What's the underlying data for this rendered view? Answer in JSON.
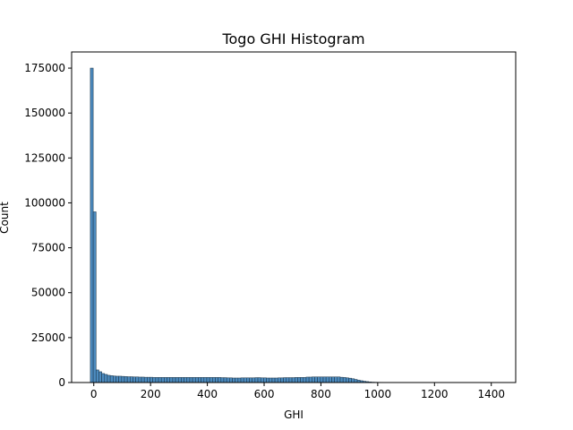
{
  "chart_data": {
    "type": "bar",
    "title": "Togo GHI Histogram",
    "xlabel": "GHI",
    "ylabel": "Count",
    "xlim": [
      -78,
      1486
    ],
    "ylim": [
      0,
      184000
    ],
    "x_ticks": [
      0,
      200,
      400,
      600,
      800,
      1000,
      1200,
      1400
    ],
    "y_ticks": [
      0,
      25000,
      50000,
      75000,
      100000,
      125000,
      150000,
      175000
    ],
    "x_tick_labels": [
      "0",
      "200",
      "400",
      "600",
      "800",
      "1000",
      "1200",
      "1400"
    ],
    "y_tick_labels": [
      "0",
      "25000",
      "50000",
      "75000",
      "100000",
      "125000",
      "150000",
      "175000"
    ],
    "bin_start": -12,
    "bin_width": 10,
    "counts": [
      175000,
      95000,
      7000,
      6000,
      5000,
      4500,
      4000,
      3800,
      3600,
      3500,
      3500,
      3400,
      3300,
      3200,
      3200,
      3100,
      3100,
      3000,
      3000,
      2900,
      2900,
      2900,
      2800,
      2800,
      2800,
      2800,
      2800,
      2800,
      2800,
      2800,
      2800,
      2800,
      2800,
      2800,
      2800,
      2800,
      2800,
      2800,
      2800,
      2800,
      2800,
      2800,
      2800,
      2800,
      2800,
      2800,
      2700,
      2700,
      2600,
      2600,
      2500,
      2500,
      2500,
      2600,
      2600,
      2600,
      2600,
      2600,
      2700,
      2700,
      2600,
      2600,
      2500,
      2500,
      2500,
      2500,
      2600,
      2600,
      2700,
      2700,
      2700,
      2700,
      2800,
      2800,
      2800,
      2800,
      3000,
      3000,
      3100,
      3100,
      3100,
      3100,
      3100,
      3100,
      3100,
      3100,
      3100,
      3100,
      2900,
      2800,
      2600,
      2400,
      2100,
      1700,
      1300,
      1000,
      700,
      500,
      300,
      200,
      150,
      120,
      100,
      80,
      60,
      50,
      40,
      30,
      20,
      15,
      10,
      8,
      5,
      4,
      3,
      2,
      2,
      1,
      1,
      1,
      1,
      1,
      1,
      1,
      1,
      1,
      1,
      1,
      1,
      1,
      1,
      1,
      1,
      1,
      1,
      1,
      1,
      1,
      1,
      1,
      1,
      1,
      1,
      1,
      1,
      1,
      1,
      1
    ],
    "bar_fill": "#4c8bbf",
    "bar_edge": "#1f3b52",
    "grid": false
  }
}
